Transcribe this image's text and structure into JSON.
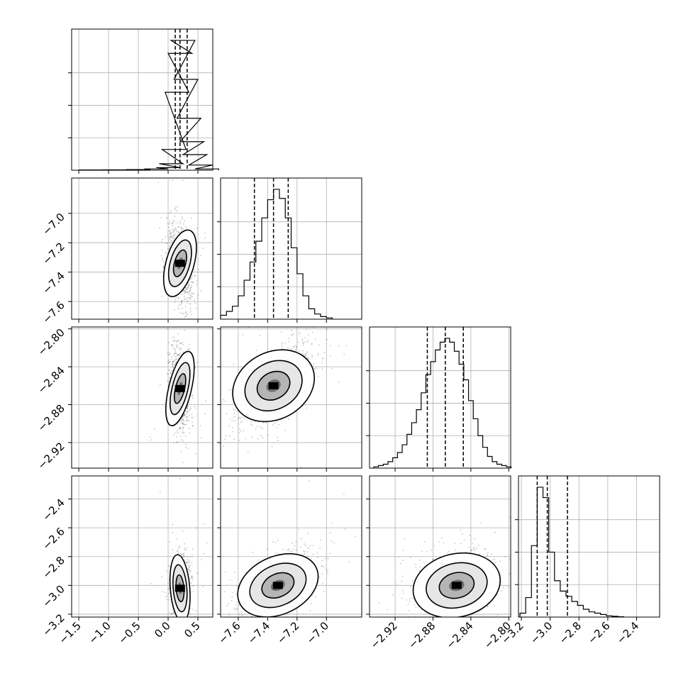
{
  "chart_data": {
    "type": "corner",
    "parameters": 4,
    "grid": true,
    "axes": [
      {
        "min": -1.62,
        "max": 0.75,
        "ticks": [
          -1.5,
          -1.0,
          -0.5,
          0.0,
          0.5
        ],
        "tick_labels": [
          "−1.5",
          "−1.0",
          "−0.5",
          "0.0",
          "0.5"
        ]
      },
      {
        "min": -7.72,
        "max": -6.76,
        "ticks": [
          -7.6,
          -7.4,
          -7.2,
          -7.0
        ],
        "tick_labels": [
          "−7.6",
          "−7.4",
          "−7.2",
          "−7.0"
        ]
      },
      {
        "min": -2.947,
        "max": -2.798,
        "ticks": [
          -2.92,
          -2.88,
          -2.84,
          -2.8
        ],
        "tick_labels": [
          "−2.92",
          "−2.88",
          "−2.84",
          "−2.80"
        ]
      },
      {
        "min": -3.22,
        "max": -2.24,
        "ticks": [
          -3.2,
          -3.0,
          -2.8,
          -2.6,
          -2.4
        ],
        "tick_labels": [
          "−3.2",
          "−3.0",
          "−2.8",
          "−2.6",
          "−2.4"
        ]
      }
    ],
    "y_tick_labels": {
      "1": [
        "−7.6",
        "−7.4",
        "−7.2",
        "−7.0"
      ],
      "2": [
        "−2.92",
        "−2.88",
        "−2.84",
        "−2.80"
      ],
      "3": [
        "−3.2",
        "−3.0",
        "−2.8",
        "−2.6",
        "−2.4"
      ]
    },
    "marginals": [
      {
        "quantiles": [
          0.12,
          0.2,
          0.32
        ],
        "centers": [
          -1.3,
          -0.9,
          -0.5,
          -0.2,
          0.0,
          0.05,
          0.1,
          0.15,
          0.2,
          0.25,
          0.3,
          0.35,
          0.4,
          0.45,
          0.55,
          0.65
        ],
        "counts": [
          0.002,
          0.003,
          0.005,
          0.01,
          0.02,
          0.05,
          0.16,
          0.6,
          0.9,
          1.0,
          0.7,
          0.4,
          0.22,
          0.12,
          0.04,
          0.01
        ]
      },
      {
        "quantiles": [
          -7.49,
          -7.36,
          -7.26
        ],
        "centers": [
          -7.7,
          -7.66,
          -7.62,
          -7.58,
          -7.54,
          -7.5,
          -7.46,
          -7.42,
          -7.38,
          -7.34,
          -7.3,
          -7.26,
          -7.22,
          -7.18,
          -7.14,
          -7.1,
          -7.06,
          -7.02,
          -6.98
        ],
        "counts": [
          0.03,
          0.06,
          0.1,
          0.18,
          0.3,
          0.44,
          0.6,
          0.78,
          0.92,
          1.0,
          0.93,
          0.78,
          0.55,
          0.35,
          0.18,
          0.08,
          0.04,
          0.02,
          0.01
        ]
      },
      {
        "quantiles": [
          -2.886,
          -2.867,
          -2.848
        ],
        "centers": [
          -2.94,
          -2.935,
          -2.93,
          -2.925,
          -2.92,
          -2.915,
          -2.91,
          -2.905,
          -2.9,
          -2.895,
          -2.89,
          -2.885,
          -2.88,
          -2.875,
          -2.87,
          -2.865,
          -2.86,
          -2.855,
          -2.85,
          -2.845,
          -2.84,
          -2.835,
          -2.83,
          -2.825,
          -2.82,
          -2.815,
          -2.81,
          -2.805,
          -2.8
        ],
        "counts": [
          0.01,
          0.02,
          0.03,
          0.05,
          0.08,
          0.12,
          0.18,
          0.26,
          0.35,
          0.45,
          0.58,
          0.72,
          0.82,
          0.91,
          0.97,
          1.0,
          0.97,
          0.9,
          0.8,
          0.68,
          0.52,
          0.38,
          0.25,
          0.16,
          0.09,
          0.05,
          0.03,
          0.02,
          0.01
        ]
      },
      {
        "quantiles": [
          -3.09,
          -3.02,
          -2.88
        ],
        "centers": [
          -3.19,
          -3.15,
          -3.11,
          -3.07,
          -3.03,
          -2.99,
          -2.95,
          -2.91,
          -2.87,
          -2.83,
          -2.79,
          -2.75,
          -2.71,
          -2.67,
          -2.63,
          -2.59,
          -2.55,
          -2.51
        ],
        "counts": [
          0.03,
          0.15,
          0.55,
          1.0,
          0.92,
          0.5,
          0.28,
          0.2,
          0.16,
          0.12,
          0.09,
          0.06,
          0.04,
          0.03,
          0.02,
          0.01,
          0.006,
          0.003
        ]
      }
    ],
    "joints": [
      {
        "x": 0,
        "y": 1,
        "cx": 0.2,
        "cy": -7.34,
        "sx": 0.11,
        "sy": 0.13,
        "rho": -0.35
      },
      {
        "x": 0,
        "y": 2,
        "cx": 0.2,
        "cy": -2.863,
        "sx": 0.09,
        "sy": 0.022,
        "rho": -0.3
      },
      {
        "x": 1,
        "y": 2,
        "cx": -7.36,
        "cy": -2.86,
        "sx": 0.13,
        "sy": 0.022,
        "rho": 0.65
      },
      {
        "x": 0,
        "y": 3,
        "cx": 0.2,
        "cy": -3.02,
        "sx": 0.08,
        "sy": 0.12,
        "rho": 0.1
      },
      {
        "x": 1,
        "y": 3,
        "cx": -7.33,
        "cy": -3.0,
        "sx": 0.13,
        "sy": 0.12,
        "rho": 0.55
      },
      {
        "x": 2,
        "y": 3,
        "cx": -2.855,
        "cy": -3.0,
        "sx": 0.022,
        "sy": 0.12,
        "rho": 0.3
      }
    ]
  }
}
